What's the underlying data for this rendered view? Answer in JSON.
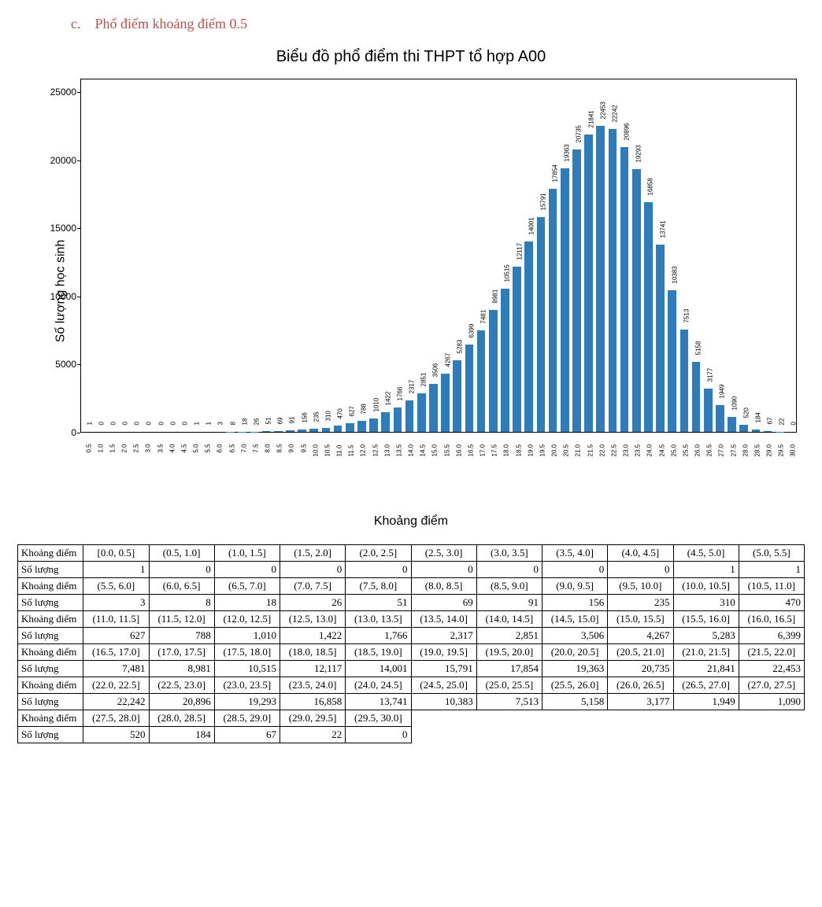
{
  "heading_prefix": "c.",
  "heading_text": "Phổ điểm khoảng điểm 0.5",
  "heading_color": "#c0504d",
  "chart": {
    "type": "bar",
    "title": "Biểu đồ phổ điểm thi THPT tổ hợp A00",
    "title_fontsize": 20,
    "xlabel": "Khoảng điểm",
    "ylabel": "Số lượng học sinh",
    "label_fontsize": 16,
    "background_color": "#ffffff",
    "border_color": "#000000",
    "bar_color": "#2f7cba",
    "bar_width_ratio": 0.7,
    "ylim": [
      0,
      26000
    ],
    "yticks": [
      0,
      5000,
      10000,
      15000,
      20000,
      25000
    ],
    "xtick_labels": [
      "0.5",
      "1.0",
      "1.5",
      "2.0",
      "2.5",
      "3.0",
      "3.5",
      "4.0",
      "4.5",
      "5.0",
      "5.5",
      "6.0",
      "6.5",
      "7.0",
      "7.5",
      "8.0",
      "8.5",
      "9.0",
      "9.5",
      "10.0",
      "10.5",
      "11.0",
      "11.5",
      "12.0",
      "12.5",
      "13.0",
      "13.5",
      "14.0",
      "14.5",
      "15.0",
      "15.5",
      "16.0",
      "16.5",
      "17.0",
      "17.5",
      "18.0",
      "18.5",
      "19.0",
      "19.5",
      "20.0",
      "20.5",
      "21.0",
      "21.5",
      "22.0",
      "22.5",
      "23.0",
      "23.5",
      "24.0",
      "24.5",
      "25.0",
      "25.5",
      "26.0",
      "26.5",
      "27.0",
      "27.5",
      "28.0",
      "28.5",
      "29.0",
      "29.5",
      "30.0"
    ],
    "values": [
      1,
      0,
      0,
      0,
      0,
      0,
      0,
      0,
      0,
      1,
      1,
      3,
      8,
      18,
      26,
      51,
      69,
      91,
      156,
      235,
      310,
      470,
      627,
      788,
      1010,
      1422,
      1766,
      2317,
      2851,
      3506,
      4267,
      5283,
      6399,
      7481,
      8981,
      10515,
      12117,
      14001,
      15791,
      17854,
      19363,
      20735,
      21841,
      22453,
      22242,
      20896,
      19293,
      16858,
      13741,
      10383,
      7513,
      5158,
      3177,
      1949,
      1090,
      520,
      184,
      67,
      22,
      0
    ],
    "value_label_fontsize": 8,
    "tick_fontsize": 8
  },
  "table": {
    "row_header_range": "Khoảng điểm",
    "row_header_count": "Số lượng",
    "columns_per_row": 11,
    "ranges": [
      "[0.0, 0.5]",
      "(0.5, 1.0]",
      "(1.0, 1.5]",
      "(1.5, 2.0]",
      "(2.0, 2.5]",
      "(2.5, 3.0]",
      "(3.0, 3.5]",
      "(3.5, 4.0]",
      "(4.0, 4.5]",
      "(4.5, 5.0]",
      "(5.0, 5.5]",
      "(5.5, 6.0]",
      "(6.0, 6.5]",
      "(6.5, 7.0]",
      "(7.0, 7.5]",
      "(7.5, 8.0]",
      "(8.0, 8.5]",
      "(8.5, 9.0]",
      "(9.0, 9.5]",
      "(9.5, 10.0]",
      "(10.0, 10.5]",
      "(10.5, 11.0]",
      "(11.0, 11.5]",
      "(11.5, 12.0]",
      "(12.0, 12.5]",
      "(12.5, 13.0]",
      "(13.0, 13.5]",
      "(13.5, 14.0]",
      "(14.0, 14.5]",
      "(14.5, 15.0]",
      "(15.0, 15.5]",
      "(15.5, 16.0]",
      "(16.0, 16.5]",
      "(16.5, 17.0]",
      "(17.0, 17.5]",
      "(17.5, 18.0]",
      "(18.0, 18.5]",
      "(18.5, 19.0]",
      "(19.0, 19.5]",
      "(19.5, 20.0]",
      "(20.0, 20.5]",
      "(20.5, 21.0]",
      "(21.0, 21.5]",
      "(21.5, 22.0]",
      "(22.0, 22.5]",
      "(22.5, 23.0]",
      "(23.0, 23.5]",
      "(23.5, 24.0]",
      "(24.0, 24.5]",
      "(24.5, 25.0]",
      "(25.0, 25.5]",
      "(25.5, 26.0]",
      "(26.0, 26.5]",
      "(26.5, 27.0]",
      "(27.0, 27.5]",
      "(27.5, 28.0]",
      "(28.0, 28.5]",
      "(28.5, 29.0]",
      "(29.0, 29.5]",
      "(29.5, 30.0]"
    ],
    "counts": [
      1,
      0,
      0,
      0,
      0,
      0,
      0,
      0,
      0,
      1,
      1,
      3,
      8,
      18,
      26,
      51,
      69,
      91,
      156,
      235,
      310,
      470,
      627,
      788,
      1010,
      1422,
      1766,
      2317,
      2851,
      3506,
      4267,
      5283,
      6399,
      7481,
      8981,
      10515,
      12117,
      14001,
      15791,
      17854,
      19363,
      20735,
      21841,
      22453,
      22242,
      20896,
      19293,
      16858,
      13741,
      10383,
      7513,
      5158,
      3177,
      1949,
      1090,
      520,
      184,
      67,
      22,
      0
    ],
    "cell_fontsize": 13,
    "border_color": "#000000"
  }
}
